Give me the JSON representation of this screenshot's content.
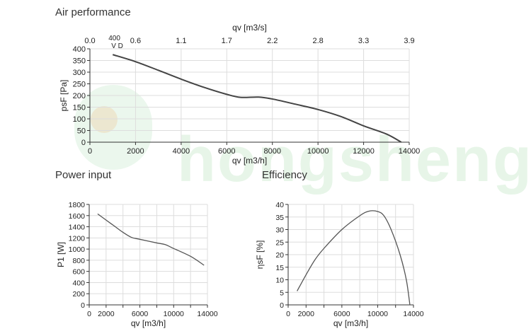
{
  "watermark": "hongsheng",
  "chart_data": [
    {
      "type": "line",
      "title": "Air performance",
      "xlabel": "qv [m3/h]",
      "x2label": "qv [m3/s]",
      "ylabel": "psF [Pa]",
      "xlim": [
        0,
        14000
      ],
      "ylim": [
        0,
        400
      ],
      "xticks": [
        0,
        2000,
        4000,
        6000,
        8000,
        10000,
        12000,
        14000
      ],
      "yticks": [
        0,
        50,
        100,
        150,
        200,
        250,
        300,
        350,
        400
      ],
      "x2ticks": [
        "0.0",
        "0.6",
        "1.1",
        "1.7",
        "2.2",
        "2.8",
        "3.3",
        "3.9"
      ],
      "annotation": [
        "400",
        "V D"
      ],
      "grid": true,
      "series": [
        {
          "name": "psF",
          "x": [
            1000,
            2000,
            3000,
            4000,
            5000,
            6000,
            6600,
            7400,
            8000,
            9000,
            10000,
            11000,
            12000,
            13000,
            13650
          ],
          "y": [
            375,
            345,
            308,
            270,
            235,
            205,
            192,
            193,
            185,
            163,
            140,
            110,
            70,
            35,
            0
          ]
        }
      ]
    },
    {
      "type": "line",
      "title": "Power input",
      "xlabel": "qv [m3/h]",
      "ylabel": "P1 [W]",
      "xlim": [
        0,
        14000
      ],
      "ylim": [
        0,
        1800
      ],
      "xticks": [
        0,
        2000,
        6000,
        10000,
        14000
      ],
      "xgrid": [
        0,
        2000,
        4000,
        6000,
        8000,
        10000,
        12000,
        14000
      ],
      "yticks": [
        0,
        200,
        400,
        600,
        800,
        1000,
        1200,
        1400,
        1600,
        1800
      ],
      "grid": true,
      "series": [
        {
          "name": "P1",
          "x": [
            1000,
            2000,
            3000,
            4000,
            5000,
            6000,
            8000,
            9000,
            10000,
            12000,
            13600
          ],
          "y": [
            1630,
            1520,
            1410,
            1300,
            1210,
            1175,
            1110,
            1080,
            1010,
            870,
            710
          ]
        }
      ]
    },
    {
      "type": "line",
      "title": "Efficiency",
      "xlabel": "qv [m3/h]",
      "ylabel": "ηsF [%]",
      "xlim": [
        0,
        14000
      ],
      "ylim": [
        0,
        40
      ],
      "xticks": [
        0,
        2000,
        6000,
        10000,
        14000
      ],
      "xgrid": [
        0,
        2000,
        4000,
        6000,
        8000,
        10000,
        12000,
        14000
      ],
      "yticks": [
        0,
        5,
        10,
        15,
        20,
        25,
        30,
        35,
        40
      ],
      "grid": true,
      "series": [
        {
          "name": "ηsF",
          "x": [
            1000,
            2000,
            3000,
            4000,
            6000,
            8000,
            9000,
            10000,
            10700,
            11500,
            12500,
            13200,
            13600
          ],
          "y": [
            5.5,
            12,
            18,
            22.5,
            30,
            35.5,
            37.3,
            37.2,
            35.5,
            30,
            20,
            10,
            0
          ]
        }
      ]
    }
  ]
}
